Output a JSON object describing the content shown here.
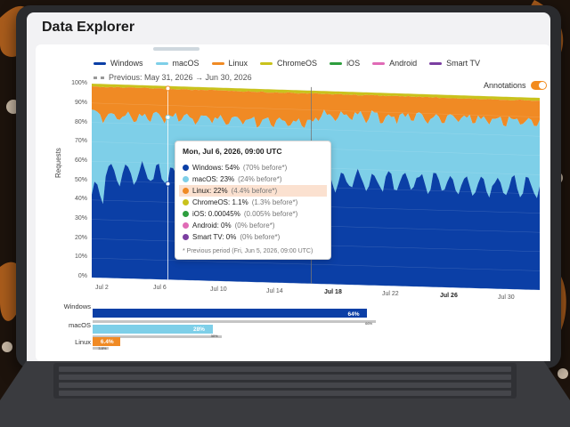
{
  "app": {
    "title": "Data Explorer"
  },
  "legend": {
    "items": [
      {
        "label": "Windows",
        "color": "#0b3fa6"
      },
      {
        "label": "macOS",
        "color": "#7ecfe8"
      },
      {
        "label": "Linux",
        "color": "#f08a24"
      },
      {
        "label": "ChromeOS",
        "color": "#c9c21c"
      },
      {
        "label": "iOS",
        "color": "#2e9e3e"
      },
      {
        "label": "Android",
        "color": "#e06bb6"
      },
      {
        "label": "Smart TV",
        "color": "#7b3fa1"
      }
    ],
    "previous": "Previous: May 31, 2026 → Jun 30, 2026"
  },
  "annotations": {
    "label": "Annotations",
    "enabled": true
  },
  "chart_data": {
    "type": "area",
    "stacked": true,
    "ylabel": "Requests",
    "ylim": [
      0,
      100
    ],
    "yticks": [
      "100%",
      "90%",
      "80%",
      "70%",
      "60%",
      "50%",
      "40%",
      "30%",
      "20%",
      "10%",
      "0%"
    ],
    "xticks": [
      {
        "label": "Jul 2",
        "bold": false
      },
      {
        "label": "Jul 6",
        "bold": false
      },
      {
        "label": "Jul 10",
        "bold": false
      },
      {
        "label": "Jul 14",
        "bold": false
      },
      {
        "label": "Jul 18",
        "bold": true
      },
      {
        "label": "Jul 22",
        "bold": false
      },
      {
        "label": "Jul 26",
        "bold": true
      },
      {
        "label": "Jul 30",
        "bold": false
      }
    ],
    "series": [
      {
        "name": "Windows",
        "color": "#0b3fa6",
        "approx_share": 54
      },
      {
        "name": "macOS",
        "color": "#7ecfe8",
        "approx_share": 30
      },
      {
        "name": "Linux",
        "color": "#f08a24",
        "approx_share": 13
      },
      {
        "name": "ChromeOS",
        "color": "#c9c21c",
        "approx_share": 1
      }
    ]
  },
  "tooltip": {
    "title": "Mon, Jul 6, 2026, 09:00 UTC",
    "rows": [
      {
        "label": "Windows: 54%",
        "prev": "(70% before*)",
        "color": "#0b3fa6"
      },
      {
        "label": "macOS: 23%",
        "prev": "(24% before*)",
        "color": "#7ecfe8"
      },
      {
        "label": "Linux: 22%",
        "prev": "(4.4% before*)",
        "color": "#f08a24"
      },
      {
        "label": "ChromeOS: 1.1%",
        "prev": "(1.3% before*)",
        "color": "#c9c21c"
      },
      {
        "label": "iOS: 0.00045%",
        "prev": "(0.005% before*)",
        "color": "#2e9e3e"
      },
      {
        "label": "Android: 0%",
        "prev": "(0% before*)",
        "color": "#e06bb6"
      },
      {
        "label": "Smart TV: 0%",
        "prev": "(0% before*)",
        "color": "#7b3fa1"
      }
    ],
    "footnote": "* Previous period (Fri, Jun 5, 2026, 09:00 UTC)"
  },
  "summary_bars": [
    {
      "label": "Windows",
      "value": "64%",
      "pct": 64,
      "prev_value": "66%",
      "prev_pct": 66,
      "color": "#0b3fa6"
    },
    {
      "label": "macOS",
      "value": "28%",
      "pct": 28,
      "prev_value": "30%",
      "prev_pct": 30,
      "color": "#7ecfe8"
    },
    {
      "label": "Linux",
      "value": "6.4%",
      "pct": 6.4,
      "prev_value": "3.8%",
      "prev_pct": 3.8,
      "color": "#f08a24"
    }
  ]
}
